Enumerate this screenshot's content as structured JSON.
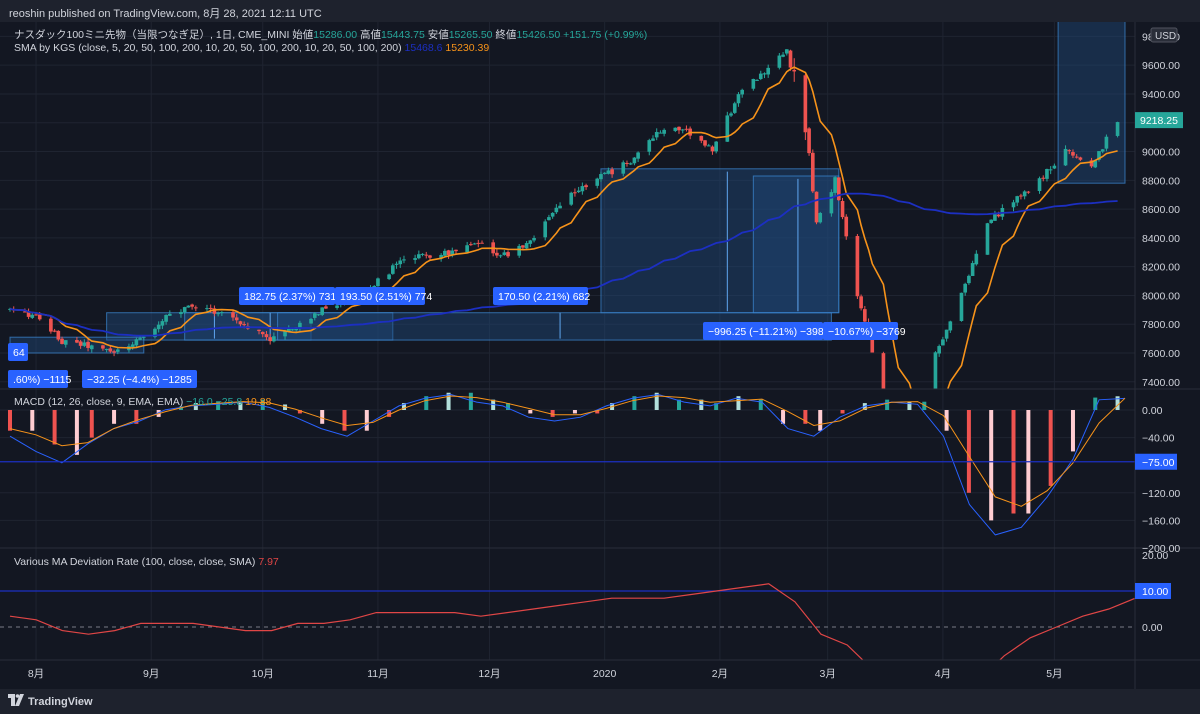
{
  "header": {
    "publish_line": "reoshin published on TradingView.com, 8月 28, 2021 12:11 UTC"
  },
  "footer": {
    "brand": "TradingView"
  },
  "main_pane": {
    "title": "ナスダック100ミニ先物（当限つなぎ足）, 1日, CME_MINI",
    "ohlc": [
      {
        "label": "始値",
        "value": "15286.00"
      },
      {
        "label": "高値",
        "value": "15443.75"
      },
      {
        "label": "安値",
        "value": "15265.50"
      },
      {
        "label": "終値",
        "value": "15426.50"
      }
    ],
    "change": "+151.75 (+0.99%)",
    "indicator": "SMA by KGS (close, 5, 20, 50, 100, 200, 10, 20, 50, 100, 200, 10, 20, 50, 100, 200)",
    "indicator_value_hidden": "15468.6",
    "indicator_value": "15230.39",
    "currency_badge": "USD",
    "price_badge": "9218.25",
    "price_ticks": [
      "9800.00",
      "9600.00",
      "9400.00",
      "9200.00",
      "9000.00",
      "8800.00",
      "8600.00",
      "8400.00",
      "8200.00",
      "8000.00",
      "7800.00",
      "7600.00",
      "7400.00"
    ],
    "measure_labels": [
      "182.75 (2.37%) 731",
      "193.50 (2.51%) 774",
      "170.50 (2.21%) 682",
      "−996.25 (−11.21%) −3985",
      "−10.67%) −3769",
      "64",
      ".60%) −1115",
      "−32.25 (−4.4%) −1285"
    ]
  },
  "macd_pane": {
    "title": "MACD (12, 26, close, 9, EMA, EMA)",
    "values": "−16.0  −25.8",
    "last_value": "19.88",
    "ticks": [
      "0.00",
      "−40.00",
      "−120.00",
      "−160.00",
      "−200.00"
    ],
    "badge": "−75.00"
  },
  "dev_pane": {
    "title": "Various MA Deviation Rate (100, close, close, SMA)",
    "value": "7.97",
    "ticks": [
      "20.00",
      "0.00"
    ],
    "badge": "10.00"
  },
  "time_axis": [
    "8月",
    "9月",
    "10月",
    "11月",
    "12月",
    "2020",
    "2月",
    "3月",
    "4月",
    "5月"
  ],
  "colors": {
    "background": "#131722",
    "up": "#26a69a",
    "down": "#ef5350",
    "sma_fast": "#f7931a",
    "sma_slow": "#1c2fc2",
    "badge_blue": "#2962ff",
    "measure_fill": "#1e4a7a",
    "dev_line": "#e04646",
    "hist_light_up": "#b2dfdb",
    "hist_light_down": "#ffcdd2"
  },
  "chart_data": [
    {
      "type": "candlestick",
      "title": "ナスダック100ミニ先物（当限つなぎ足）, 1日, CME_MINI",
      "x": [
        "8月",
        "9月",
        "10月",
        "11月",
        "12月",
        "2020",
        "2月",
        "3月",
        "4月",
        "5月"
      ],
      "ylim": [
        7350,
        9900
      ],
      "close_path": [
        [
          "2019-07-25",
          7900
        ],
        [
          "2019-08-01",
          7850
        ],
        [
          "2019-08-08",
          7680
        ],
        [
          "2019-08-15",
          7650
        ],
        [
          "2019-08-22",
          7600
        ],
        [
          "2019-08-29",
          7700
        ],
        [
          "2019-09-05",
          7850
        ],
        [
          "2019-09-12",
          7920
        ],
        [
          "2019-09-19",
          7890
        ],
        [
          "2019-09-26",
          7800
        ],
        [
          "2019-10-03",
          7700
        ],
        [
          "2019-10-10",
          7780
        ],
        [
          "2019-10-17",
          7900
        ],
        [
          "2019-10-24",
          7980
        ],
        [
          "2019-10-31",
          8080
        ],
        [
          "2019-11-07",
          8230
        ],
        [
          "2019-11-14",
          8280
        ],
        [
          "2019-11-21",
          8300
        ],
        [
          "2019-11-28",
          8350
        ],
        [
          "2019-12-05",
          8280
        ],
        [
          "2019-12-12",
          8380
        ],
        [
          "2019-12-19",
          8600
        ],
        [
          "2019-12-26",
          8760
        ],
        [
          "2020-01-02",
          8850
        ],
        [
          "2020-01-09",
          8950
        ],
        [
          "2020-01-16",
          9150
        ],
        [
          "2020-01-23",
          9150
        ],
        [
          "2020-01-30",
          9000
        ],
        [
          "2020-02-06",
          9400
        ],
        [
          "2020-02-13",
          9560
        ],
        [
          "2020-02-19",
          9700
        ],
        [
          "2020-02-24",
          9200
        ],
        [
          "2020-02-27",
          8500
        ],
        [
          "2020-03-03",
          8800
        ],
        [
          "2020-03-09",
          8000
        ],
        [
          "2020-03-16",
          7300
        ],
        [
          "2020-03-23",
          6900
        ],
        [
          "2020-03-30",
          7600
        ],
        [
          "2020-04-06",
          8000
        ],
        [
          "2020-04-13",
          8500
        ],
        [
          "2020-04-20",
          8650
        ],
        [
          "2020-04-27",
          8800
        ],
        [
          "2020-05-04",
          9000
        ],
        [
          "2020-05-11",
          8900
        ],
        [
          "2020-05-18",
          9218.25
        ]
      ]
    },
    {
      "type": "bar",
      "title": "MACD (12, 26, close, 9, EMA, EMA)",
      "ylim": [
        -200,
        20
      ],
      "values": [
        -30,
        -50,
        -65,
        -40,
        -20,
        -10,
        5,
        10,
        12,
        15,
        8,
        -5,
        -20,
        -30,
        -10,
        10,
        20,
        25,
        15,
        10,
        -5,
        -10,
        -5,
        10,
        20,
        25,
        15,
        10,
        20,
        15,
        -20,
        -30,
        -5,
        10,
        15,
        12,
        -30,
        -120,
        -160,
        -150,
        -110,
        -60,
        18,
        19.88
      ]
    },
    {
      "type": "line",
      "title": "Various MA Deviation Rate (100, close, close, SMA)",
      "ylim": [
        -20,
        20
      ],
      "values": [
        3,
        2,
        -1,
        -2,
        -1,
        1,
        1,
        1,
        0,
        -1,
        -1,
        1,
        1,
        2,
        4,
        4,
        4,
        4,
        3,
        4,
        5,
        6,
        7,
        8,
        8,
        8,
        9,
        10,
        11,
        12,
        7,
        -2,
        -5,
        -12,
        -18,
        -21,
        -19,
        -15,
        -8,
        -3,
        0,
        3,
        5,
        7.97
      ]
    }
  ]
}
